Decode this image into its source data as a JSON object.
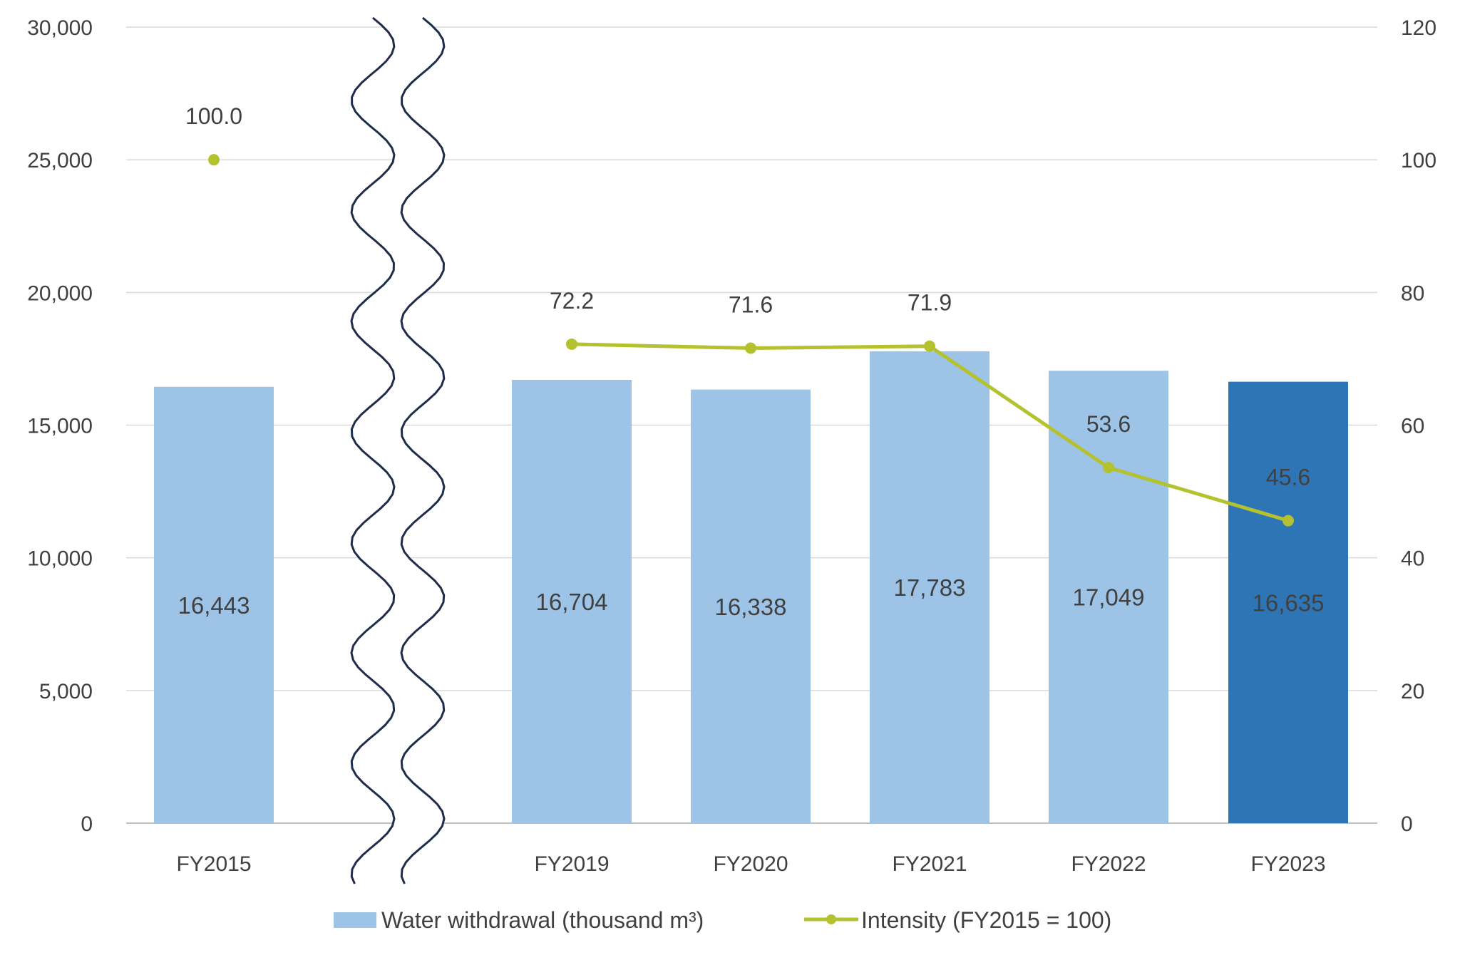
{
  "chart_data": {
    "type": "bar",
    "categories": [
      "FY2015",
      "FY2019",
      "FY2020",
      "FY2021",
      "FY2022",
      "FY2023"
    ],
    "series": [
      {
        "name": "Water withdrawal (thousand m³)",
        "type": "bar",
        "axis": "left",
        "values": [
          16443,
          16704,
          16338,
          17783,
          17049,
          16635
        ],
        "data_labels": [
          "16,443",
          "16,704",
          "16,338",
          "17,783",
          "17,049",
          "16,635"
        ],
        "color": "#9dc3e6",
        "highlight_color": "#2e75b6",
        "highlight_index": 5
      },
      {
        "name": "Intensity (FY2015 = 100)",
        "type": "line",
        "axis": "right",
        "values": [
          100.0,
          72.2,
          71.6,
          71.9,
          53.6,
          45.6
        ],
        "data_labels": [
          "100.0",
          "72.2",
          "71.6",
          "71.9",
          "53.6",
          "45.6"
        ],
        "color": "#b5c230"
      }
    ],
    "y_left": {
      "ylim": [
        0,
        30000
      ],
      "ticks": [
        "0",
        "5,000",
        "10,000",
        "15,000",
        "20,000",
        "25,000",
        "30,000"
      ]
    },
    "y_right": {
      "ylim": [
        0,
        120
      ],
      "ticks": [
        "0",
        "20",
        "40",
        "60",
        "80",
        "100",
        "120"
      ]
    },
    "axis_break_after_category": "FY2015",
    "grid": true,
    "legend_position": "bottom"
  }
}
